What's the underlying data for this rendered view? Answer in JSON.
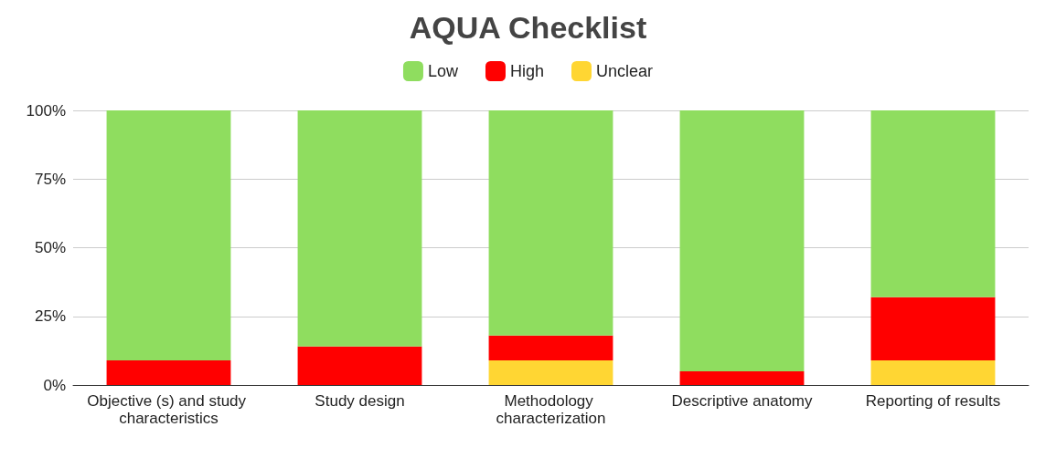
{
  "chart_data": {
    "type": "bar",
    "title": "AQUA Checklist",
    "stacked": true,
    "categories": [
      "Objective (s) and study characteristics",
      "Study design",
      "Methodology characterization",
      "Descriptive anatomy",
      "Reporting of results"
    ],
    "series": [
      {
        "name": "Unclear",
        "color": "#ffd633",
        "values": [
          0,
          0,
          9,
          0,
          9
        ]
      },
      {
        "name": "High",
        "color": "#ff0000",
        "values": [
          9,
          14,
          9,
          5,
          23
        ]
      },
      {
        "name": "Low",
        "color": "#8fdd5f",
        "values": [
          91,
          86,
          82,
          95,
          68
        ]
      }
    ],
    "ylim": [
      0,
      100
    ],
    "yticks": [
      {
        "value": 0,
        "label": "0%"
      },
      {
        "value": 25,
        "label": "25%"
      },
      {
        "value": 50,
        "label": "50%"
      },
      {
        "value": 75,
        "label": "75%"
      },
      {
        "value": 100,
        "label": "100%"
      }
    ],
    "grid": "y",
    "legend": "top"
  }
}
